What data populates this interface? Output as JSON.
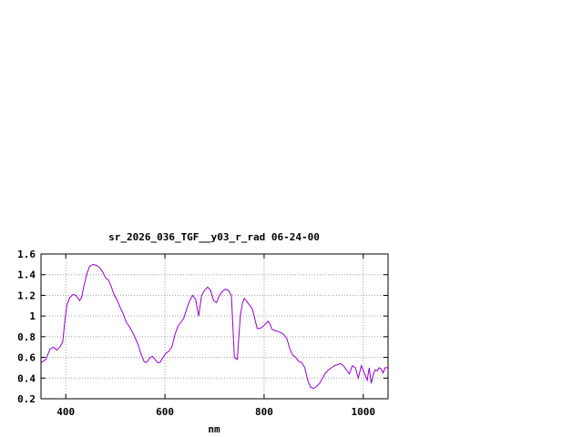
{
  "chart_data": {
    "type": "line",
    "title": "sr_2026_036_TGF__y03_r_rad 06-24-00",
    "xlabel": "nm",
    "ylabel": "",
    "xlim": [
      350,
      1050
    ],
    "ylim": [
      0.2,
      1.6
    ],
    "x_ticks": [
      400,
      600,
      800,
      1000
    ],
    "x_tick_labels": [
      "400",
      "600",
      "800",
      "1000"
    ],
    "y_ticks": [
      0.2,
      0.4,
      0.6,
      0.8,
      1.0,
      1.2,
      1.4,
      1.6
    ],
    "y_tick_labels": [
      "0.2",
      "0.4",
      "0.6",
      "0.8",
      "1",
      "1.2",
      "1.4",
      "1.6"
    ],
    "grid": true,
    "line_color": "#9400d3",
    "series": [
      {
        "x": [
          350,
          360,
          368,
          375,
          382,
          388,
          394,
          398,
          402,
          408,
          415,
          420,
          428,
          432,
          436,
          442,
          448,
          455,
          462,
          468,
          474,
          480,
          486,
          492,
          498,
          504,
          510,
          516,
          522,
          528,
          534,
          540,
          546,
          552,
          558,
          562,
          566,
          570,
          575,
          580,
          585,
          590,
          596,
          602,
          608,
          614,
          620,
          626,
          632,
          638,
          644,
          650,
          656,
          662,
          668,
          674,
          680,
          686,
          692,
          698,
          704,
          710,
          716,
          722,
          728,
          734,
          740,
          746,
          752,
          756,
          760,
          764,
          768,
          772,
          776,
          780,
          786,
          792,
          798,
          804,
          808,
          812,
          816,
          822,
          828,
          834,
          840,
          846,
          852,
          858,
          864,
          870,
          876,
          882,
          888,
          894,
          900,
          906,
          912,
          918,
          924,
          930,
          936,
          942,
          948,
          954,
          960,
          966,
          972,
          978,
          984,
          990,
          996,
          1002,
          1008,
          1012,
          1016,
          1020,
          1024,
          1028,
          1032,
          1036,
          1040,
          1044,
          1050
        ],
        "y": [
          0.55,
          0.58,
          0.68,
          0.7,
          0.67,
          0.7,
          0.75,
          0.95,
          1.1,
          1.18,
          1.21,
          1.2,
          1.15,
          1.18,
          1.28,
          1.4,
          1.48,
          1.5,
          1.49,
          1.47,
          1.43,
          1.37,
          1.35,
          1.28,
          1.2,
          1.15,
          1.08,
          1.02,
          0.94,
          0.9,
          0.85,
          0.79,
          0.72,
          0.63,
          0.56,
          0.55,
          0.57,
          0.6,
          0.61,
          0.58,
          0.55,
          0.55,
          0.6,
          0.64,
          0.66,
          0.7,
          0.82,
          0.9,
          0.94,
          0.98,
          1.07,
          1.15,
          1.2,
          1.16,
          1.0,
          1.2,
          1.25,
          1.28,
          1.25,
          1.15,
          1.13,
          1.2,
          1.24,
          1.26,
          1.25,
          1.2,
          0.6,
          0.58,
          1.0,
          1.12,
          1.17,
          1.15,
          1.12,
          1.1,
          1.07,
          1.0,
          0.88,
          0.88,
          0.9,
          0.93,
          0.95,
          0.92,
          0.87,
          0.86,
          0.85,
          0.84,
          0.82,
          0.78,
          0.68,
          0.62,
          0.6,
          0.56,
          0.55,
          0.5,
          0.38,
          0.31,
          0.3,
          0.32,
          0.35,
          0.4,
          0.45,
          0.48,
          0.5,
          0.52,
          0.53,
          0.54,
          0.52,
          0.48,
          0.44,
          0.52,
          0.5,
          0.4,
          0.52,
          0.45,
          0.38,
          0.5,
          0.35,
          0.43,
          0.48,
          0.47,
          0.5,
          0.49,
          0.45,
          0.5,
          0.5
        ],
        "x_note": ""
      }
    ]
  }
}
